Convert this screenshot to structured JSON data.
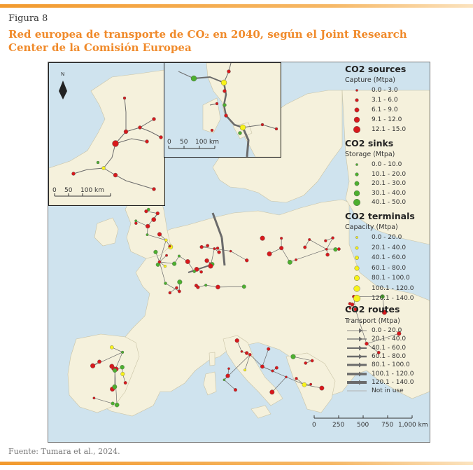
{
  "figure": {
    "label": "Figura 8",
    "title": "Red europea de transporte de CO₂ en 2040, según el Joint Research Center de la Comisión Europea",
    "source": "Fuente: Tumara et al., 2024."
  },
  "colors": {
    "accent": "#f08a2a",
    "source_point": "#d7191c",
    "sink_point": "#4daf2f",
    "terminal_point": "#f7f21a",
    "route": "#6b6b6b",
    "sea": "#cfe3ee",
    "land": "#f5f1dc"
  },
  "legend": {
    "sources": {
      "heading": "CO2 sources",
      "subheading": "Capture (Mtpa)",
      "classes": [
        "0.0 - 3.0",
        "3.1 - 6.0",
        "6.1 - 9.0",
        "9.1 - 12.0",
        "12.1 - 15.0"
      ]
    },
    "sinks": {
      "heading": "CO2 sinks",
      "subheading": "Storage (Mtpa)",
      "classes": [
        "0.0 - 10.0",
        "10.1 - 20.0",
        "20.1 - 30.0",
        "30.1 - 40.0",
        "40.1 - 50.0"
      ]
    },
    "terminals": {
      "heading": "CO2 terminals",
      "subheading": "Capacity (Mtpa)",
      "classes": [
        "0.0 - 20.0",
        "20.1 - 40.0",
        "40.1 - 60.0",
        "60.1 - 80.0",
        "80.1 - 100.0",
        "100.1 - 120.0",
        "120.1 - 140.0"
      ]
    },
    "routes": {
      "heading": "CO2 routes",
      "subheading": "Transport (Mtpa)",
      "classes": [
        "0.0 - 20.0",
        "20.1 - 40.0",
        "40.1 - 60.0",
        "60.1 - 80.0",
        "80.1 - 100.0",
        "100.1 - 120.0",
        "120.1 - 140.0",
        "Not in use"
      ]
    }
  },
  "scalebars": {
    "main": [
      "0",
      "250",
      "500",
      "750",
      "1,000 km"
    ],
    "inset_left": [
      "0",
      "50",
      "100 km"
    ],
    "inset_right": [
      "0",
      "50",
      "100 km"
    ]
  },
  "north_label": "N"
}
